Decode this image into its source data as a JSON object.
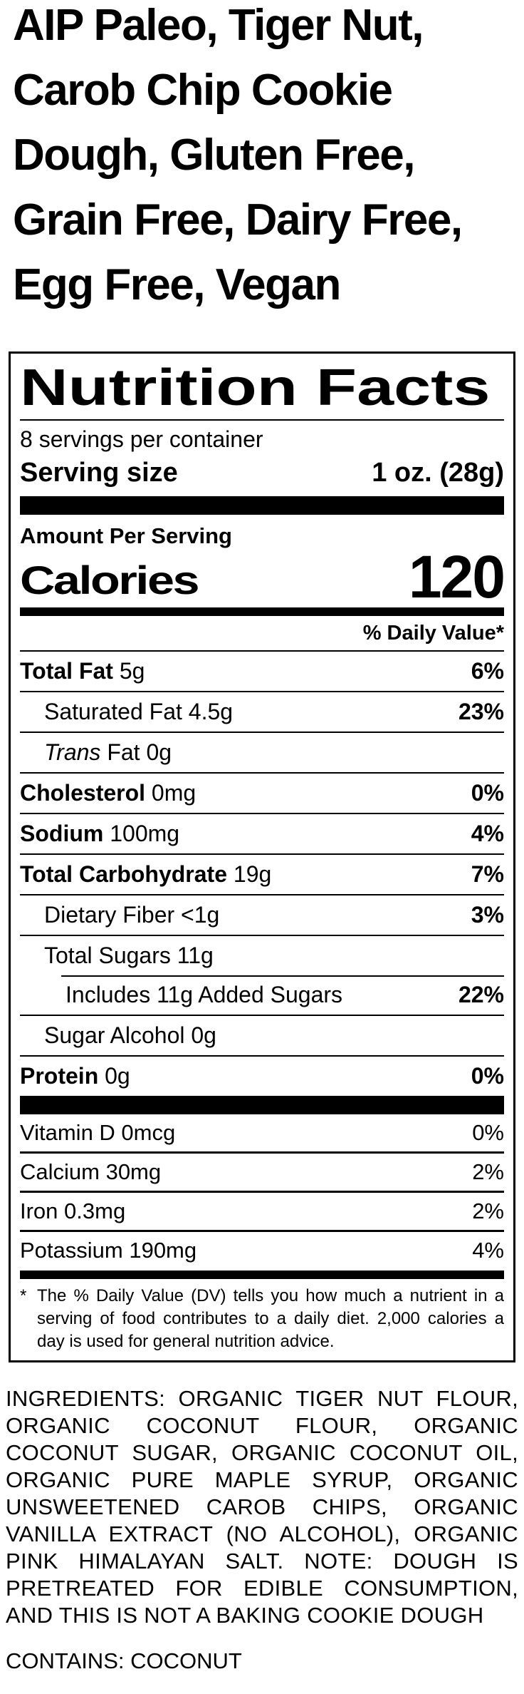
{
  "product": {
    "title": "AIP Paleo, Tiger Nut, Carob Chip Cookie Dough, Gluten Free, Grain Free, Dairy Free, Egg Free, Vegan"
  },
  "nutrition_label": {
    "heading": "Nutrition Facts",
    "servings_per_container": "8 servings per container",
    "serving_size": {
      "label": "Serving size",
      "value": "1 oz. (28g)"
    },
    "amount_per_serving": "Amount Per Serving",
    "calories": {
      "label": "Calories",
      "value": "120"
    },
    "daily_value_header": "% Daily Value*",
    "nutrients": [
      {
        "bold": "Total Fat",
        "text": " 5g",
        "dv": "6%"
      },
      {
        "bold": "",
        "text": "Saturated Fat 4.5g",
        "dv": "23%"
      },
      {
        "bold": "",
        "italic": "Trans",
        "text": " Fat 0g",
        "dv": ""
      },
      {
        "bold": "Cholesterol",
        "text": " 0mg",
        "dv": "0%"
      },
      {
        "bold": "Sodium",
        "text": " 100mg",
        "dv": "4%"
      },
      {
        "bold": "Total Carbohydrate",
        "text": " 19g",
        "dv": "7%"
      },
      {
        "bold": "",
        "text": "Dietary Fiber <1g",
        "dv": "3%"
      },
      {
        "bold": "",
        "text": "Total Sugars 11g",
        "dv": ""
      },
      {
        "bold": "",
        "text": "Includes 11g Added Sugars",
        "dv": "22%"
      },
      {
        "bold": "",
        "text": "Sugar Alcohol 0g",
        "dv": ""
      },
      {
        "bold": "Protein",
        "text": " 0g",
        "dv": "0%"
      }
    ],
    "vitamins": [
      {
        "text": "Vitamin D 0mcg",
        "dv": "0%"
      },
      {
        "text": "Calcium 30mg",
        "dv": "2%"
      },
      {
        "text": "Iron 0.3mg",
        "dv": "2%"
      },
      {
        "text": "Potassium 190mg",
        "dv": "4%"
      }
    ],
    "footnote_marker": "*",
    "footnote": "The % Daily Value (DV) tells you how much a nutrient in a serving of food contributes to a daily diet. 2,000 calories a day is used for general nutrition advice."
  },
  "ingredients": "INGREDIENTS: ORGANIC TIGER NUT FLOUR, ORGANIC COCONUT FLOUR, ORGANIC COCONUT SUGAR, ORGANIC COCONUT OIL, ORGANIC PURE MAPLE SYRUP, ORGANIC UNSWEETENED CAROB CHIPS, ORGANIC VANILLA EXTRACT (NO ALCOHOL), ORGANIC PINK HIMALAYAN SALT. NOTE: DOUGH IS PRETREATED FOR EDIBLE CONSUMPTION, AND THIS IS NOT A BAKING COOKIE DOUGH",
  "allergen_statement": "CONTAINS: COCONUT",
  "colors": {
    "text": "#000000",
    "background": "#ffffff"
  }
}
